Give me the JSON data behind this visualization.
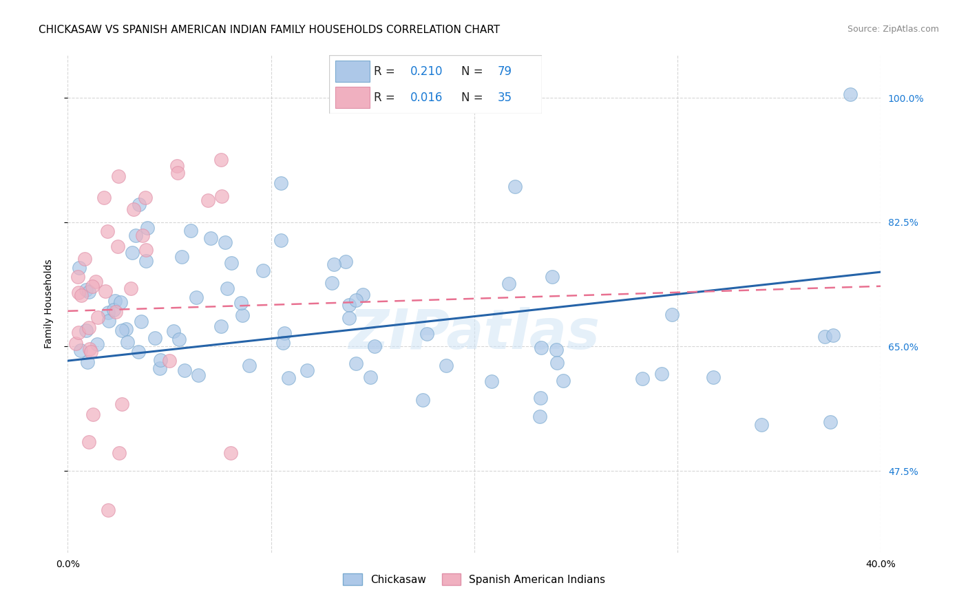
{
  "title": "CHICKASAW VS SPANISH AMERICAN INDIAN FAMILY HOUSEHOLDS CORRELATION CHART",
  "source": "Source: ZipAtlas.com",
  "ylabel": "Family Households",
  "x_tick_labels": [
    "0.0%",
    "",
    "",
    "",
    "40.0%"
  ],
  "x_tick_positions": [
    0.0,
    10.0,
    20.0,
    30.0,
    40.0
  ],
  "y_tick_labels": [
    "47.5%",
    "65.0%",
    "82.5%",
    "100.0%"
  ],
  "y_tick_positions": [
    47.5,
    65.0,
    82.5,
    100.0
  ],
  "xlim": [
    0.0,
    40.0
  ],
  "ylim": [
    36.0,
    106.0
  ],
  "blue_line_color": "#2563a8",
  "pink_line_color": "#e87090",
  "blue_scatter_color": "#adc8e8",
  "pink_scatter_color": "#f0b0c0",
  "blue_scatter_edge": "#7aaad0",
  "pink_scatter_edge": "#e090a8",
  "watermark": "ZIPatlas",
  "title_fontsize": 11,
  "source_fontsize": 9,
  "axis_label_fontsize": 10,
  "tick_fontsize": 10,
  "legend_r_blue": "0.210",
  "legend_n_blue": "79",
  "legend_r_pink": "0.016",
  "legend_n_pink": "35",
  "legend_value_color": "#1a7ad4",
  "legend_text_color": "#222222"
}
